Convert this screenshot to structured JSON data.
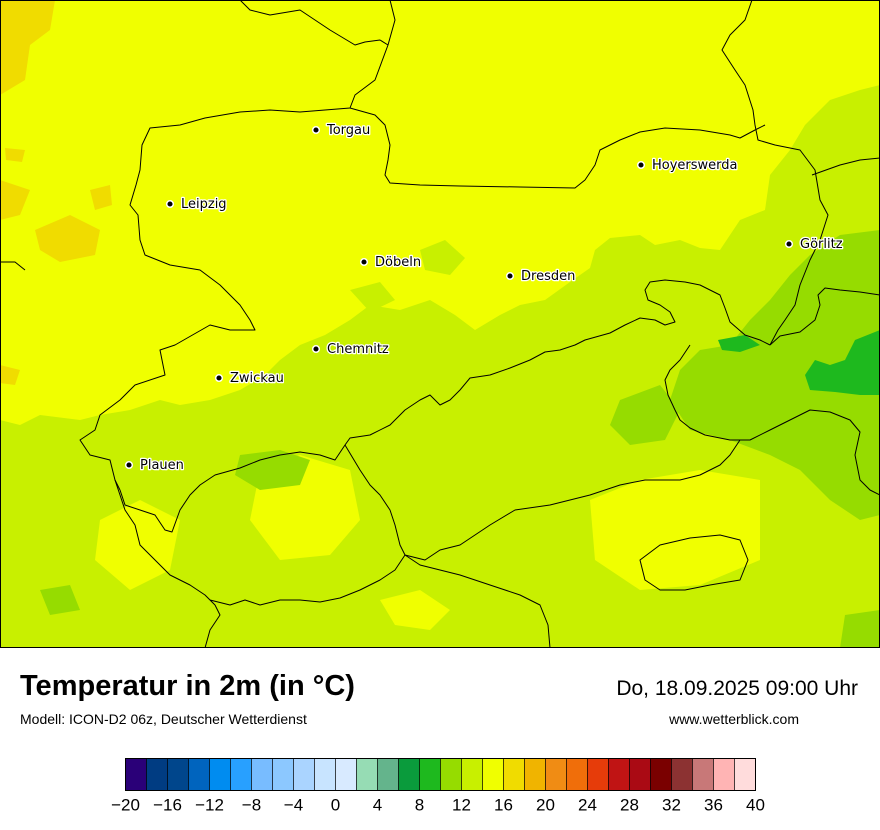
{
  "header": {
    "title": "Temperatur in 2m (in °C)",
    "subtitle": "Modell: ICON-D2 06z, Deutscher Wetterdienst",
    "datetime": "Do, 18.09.2025 09:00 Uhr",
    "website": "www.wetterblick.com"
  },
  "map": {
    "cities": [
      {
        "name": "Torgau"
      },
      {
        "name": "Hoyerswerda"
      },
      {
        "name": "Leipzig"
      },
      {
        "name": "Görlitz"
      },
      {
        "name": "Döbeln"
      },
      {
        "name": "Dresden"
      },
      {
        "name": "Chemnitz"
      },
      {
        "name": "Zwickau"
      },
      {
        "name": "Plauen"
      }
    ]
  },
  "legend": {
    "colors": [
      "#2a0078",
      "#003c82",
      "#00468c",
      "#0064be",
      "#008cf0",
      "#28a0ff",
      "#78bcff",
      "#8cc8ff",
      "#aad4ff",
      "#c8e4ff",
      "#d8eaff",
      "#96dcb4",
      "#64b48c",
      "#0a9b3c",
      "#1eb91e",
      "#96dc00",
      "#c8f000",
      "#f0ff00",
      "#f0dc00",
      "#f0b400",
      "#f08c14",
      "#f06e0a",
      "#e63c0a",
      "#c01414",
      "#aa0a14",
      "#7a0000",
      "#8c3232",
      "#c87878",
      "#ffb4b4",
      "#ffdcdc"
    ],
    "tick_labels": [
      "−20",
      "−16",
      "−12",
      "−8",
      "−4",
      "0",
      "4",
      "8",
      "12",
      "16",
      "20",
      "24",
      "28",
      "32",
      "36",
      "40"
    ]
  }
}
